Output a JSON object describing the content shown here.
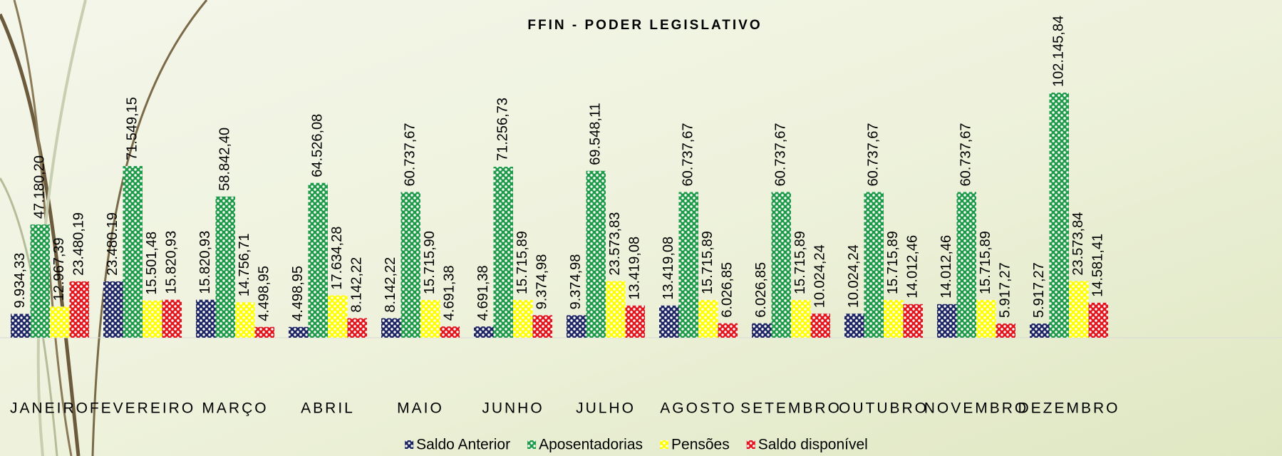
{
  "chart_data": {
    "type": "bar",
    "title": "FFIN - PODER LEGISLATIVO",
    "categories": [
      "JANEIRO",
      "FEVEREIRO",
      "MARÇO",
      "ABRIL",
      "MAIO",
      "JUNHO",
      "JULHO",
      "AGOSTO",
      "SETEMBRO",
      "OUTUBRO",
      "NOVEMBRO",
      "DEZEMBRO"
    ],
    "legend": "bottom",
    "series": [
      {
        "name": "Saldo Anterior",
        "color": "#1c2461",
        "values": [
          9934.33,
          23480.19,
          15820.93,
          4498.95,
          8142.22,
          4691.38,
          9374.98,
          13419.08,
          6026.85,
          10024.24,
          14012.46,
          5917.27
        ],
        "value_labels": [
          "9.934,33",
          "23.480.19",
          "15.820,93",
          "4.498,95",
          "8.142,22",
          "4.691,38",
          "9.374,98",
          "13.419,08",
          "6.026,85",
          "10.024,24",
          "14.012,46",
          "5.917,27"
        ]
      },
      {
        "name": "Aposentadorias",
        "color": "#1f9a48",
        "values": [
          47180.2,
          71549.15,
          58842.4,
          64526.08,
          60737.67,
          71256.73,
          69548.11,
          60737.67,
          60737.67,
          60737.67,
          60737.67,
          102145.84
        ],
        "value_labels": [
          "47.180,20",
          "71.549,15",
          "58.842,40",
          "64.526,08",
          "60.737,67",
          "71.256,73",
          "69.548,11",
          "60.737,67",
          "60.737,67",
          "60.737,67",
          "60.737,67",
          "102.145,84"
        ]
      },
      {
        "name": "Pensões",
        "color": "#ffff00",
        "values": [
          12967.39,
          15501.48,
          14756.71,
          17634.28,
          15715.9,
          15715.89,
          23573.83,
          15715.89,
          15715.89,
          15715.89,
          15715.89,
          23573.84
        ],
        "value_labels": [
          "12.967,39",
          "15.501,48",
          "14.756,71",
          "17.634,28",
          "15.715,90",
          "15.715,89",
          "23.573,83",
          "15.715,89",
          "15.715,89",
          "15.715,89",
          "15.715,89",
          "23.573,84"
        ]
      },
      {
        "name": "Saldo disponível",
        "color": "#e3141c",
        "values": [
          23480.19,
          15820.93,
          4498.95,
          8142.22,
          4691.38,
          9374.98,
          13419.08,
          6026.85,
          10024.24,
          14012.46,
          5917.27,
          14581.41
        ],
        "value_labels": [
          "23.480,19",
          "15.820,93",
          "4.498,95",
          "8.142,22",
          "4.691,38",
          "9.374,98",
          "13.419,08",
          "6.026,85",
          "10.024,24",
          "14.012,46",
          "5.917,27",
          "14.581,41"
        ]
      }
    ]
  }
}
